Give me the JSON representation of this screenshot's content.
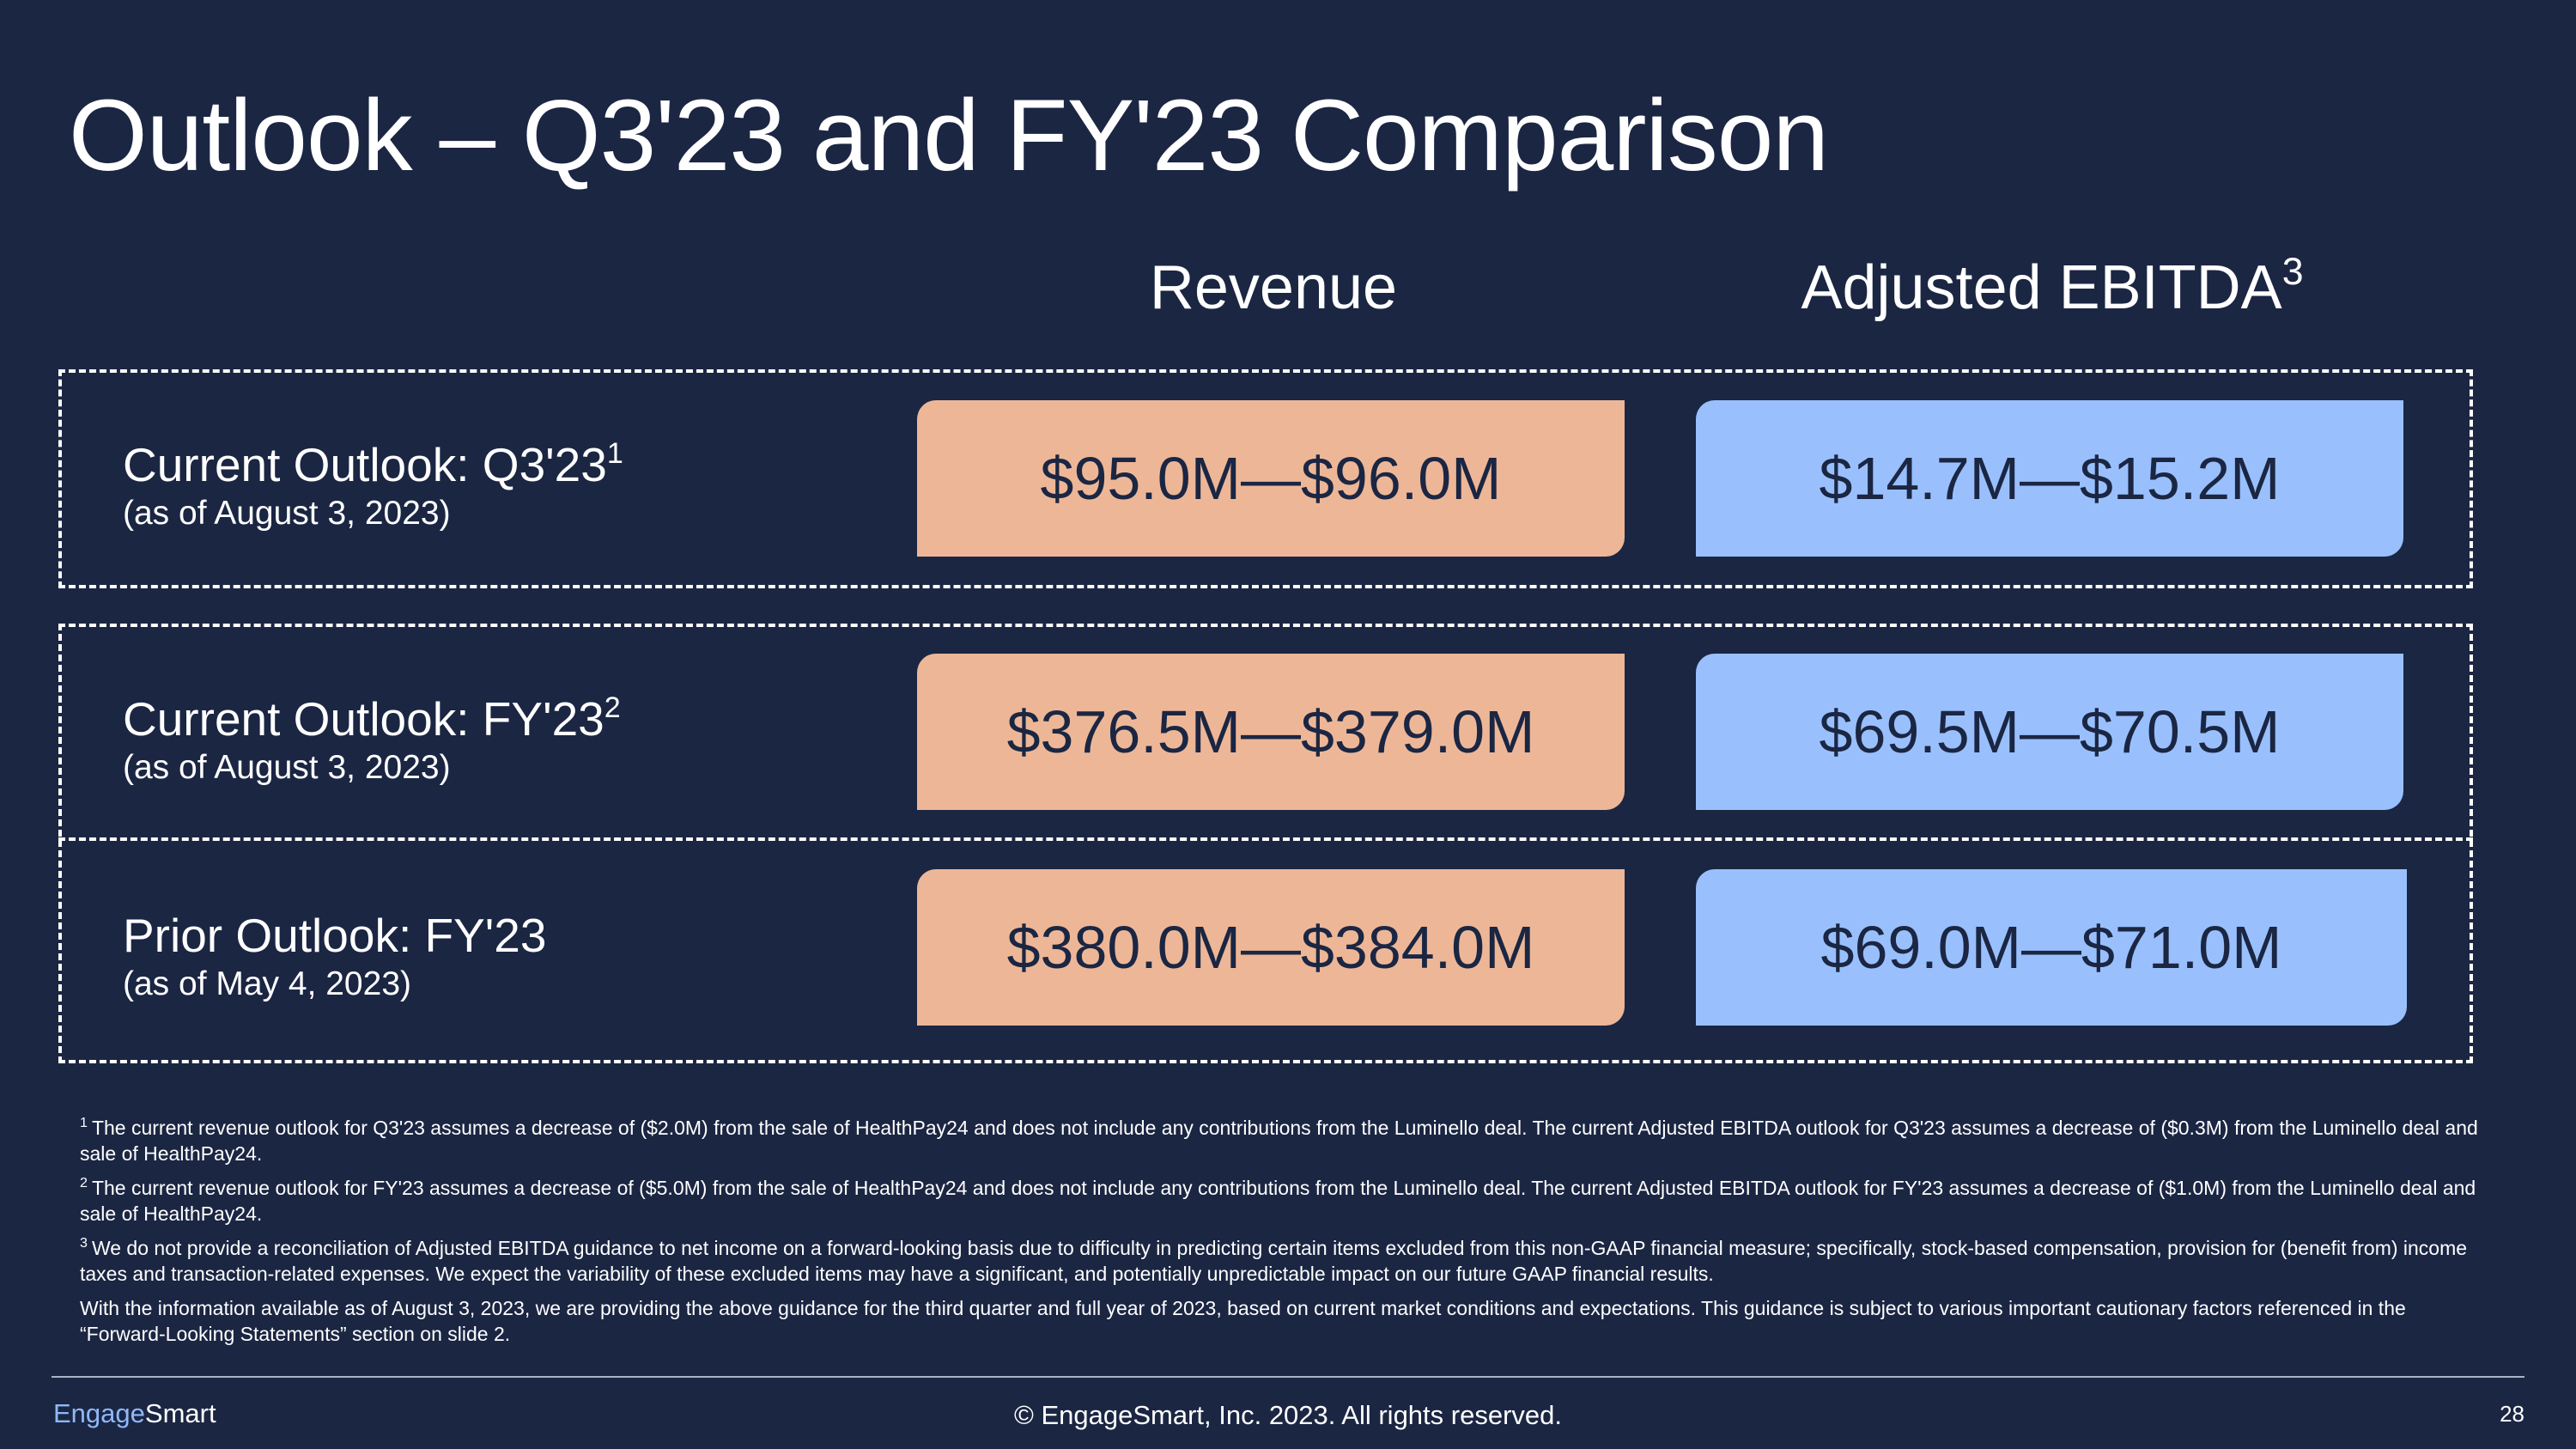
{
  "title": "Outlook – Q3'23 and FY'23 Comparison",
  "columns": {
    "revenue": "Revenue",
    "ebitda": "Adjusted EBITDA",
    "ebitda_footnote": "3"
  },
  "rows": [
    {
      "label": "Current Outlook: Q3'23",
      "footnote": "1",
      "date": "(as of August 3, 2023)",
      "revenue": "$95.0M—$96.0M",
      "ebitda": "$14.7M—$15.2M"
    },
    {
      "label": "Current Outlook: FY'23",
      "footnote": "2",
      "date": "(as of August 3, 2023)",
      "revenue": "$376.5M—$379.0M",
      "ebitda": "$69.5M—$70.5M"
    },
    {
      "label": "Prior Outlook: FY'23",
      "footnote": "",
      "date": "(as of May 4, 2023)",
      "revenue": "$380.0M—$384.0M",
      "ebitda": "$69.0M—$71.0M"
    }
  ],
  "footnotes": [
    {
      "marker": "1",
      "text": "The current revenue outlook for Q3'23 assumes a decrease of ($2.0M) from the sale of HealthPay24 and does not include any contributions from the Luminello deal. The current Adjusted EBITDA outlook for Q3'23 assumes a decrease of ($0.3M) from the Luminello deal and sale of HealthPay24."
    },
    {
      "marker": "2",
      "text": "The current revenue outlook for FY'23 assumes a decrease of ($5.0M) from the sale of HealthPay24 and does not include any contributions from the Luminello deal. The current Adjusted EBITDA outlook for FY'23 assumes a decrease of ($1.0M) from the Luminello deal and sale of HealthPay24."
    },
    {
      "marker": "3",
      "text": "We do not provide a reconciliation of Adjusted EBITDA guidance to net income on a forward-looking basis due to difficulty in predicting certain items excluded from this non-GAAP financial measure; specifically, stock-based compensation, provision for (benefit from) income taxes and transaction-related expenses. We expect the variability of these excluded items may have a significant, and potentially unpredictable impact on our future GAAP financial results."
    },
    {
      "marker": "",
      "text": "With the information available as of August 3, 2023, we are providing the above guidance for the third quarter and full year of 2023, based on current market conditions and expectations. This guidance is subject to various important cautionary factors referenced in the “Forward-Looking Statements” section on slide 2."
    }
  ],
  "footer": {
    "logo_part1": "Engage",
    "logo_part2": "Smart",
    "copyright": "© EngageSmart, Inc. 2023. All rights reserved.",
    "page_number": "28"
  },
  "colors": {
    "background": "#1b2643",
    "revenue_box": "#edb797",
    "ebitda_box": "#99c0fd",
    "logo_accent": "#8fb8f8"
  }
}
